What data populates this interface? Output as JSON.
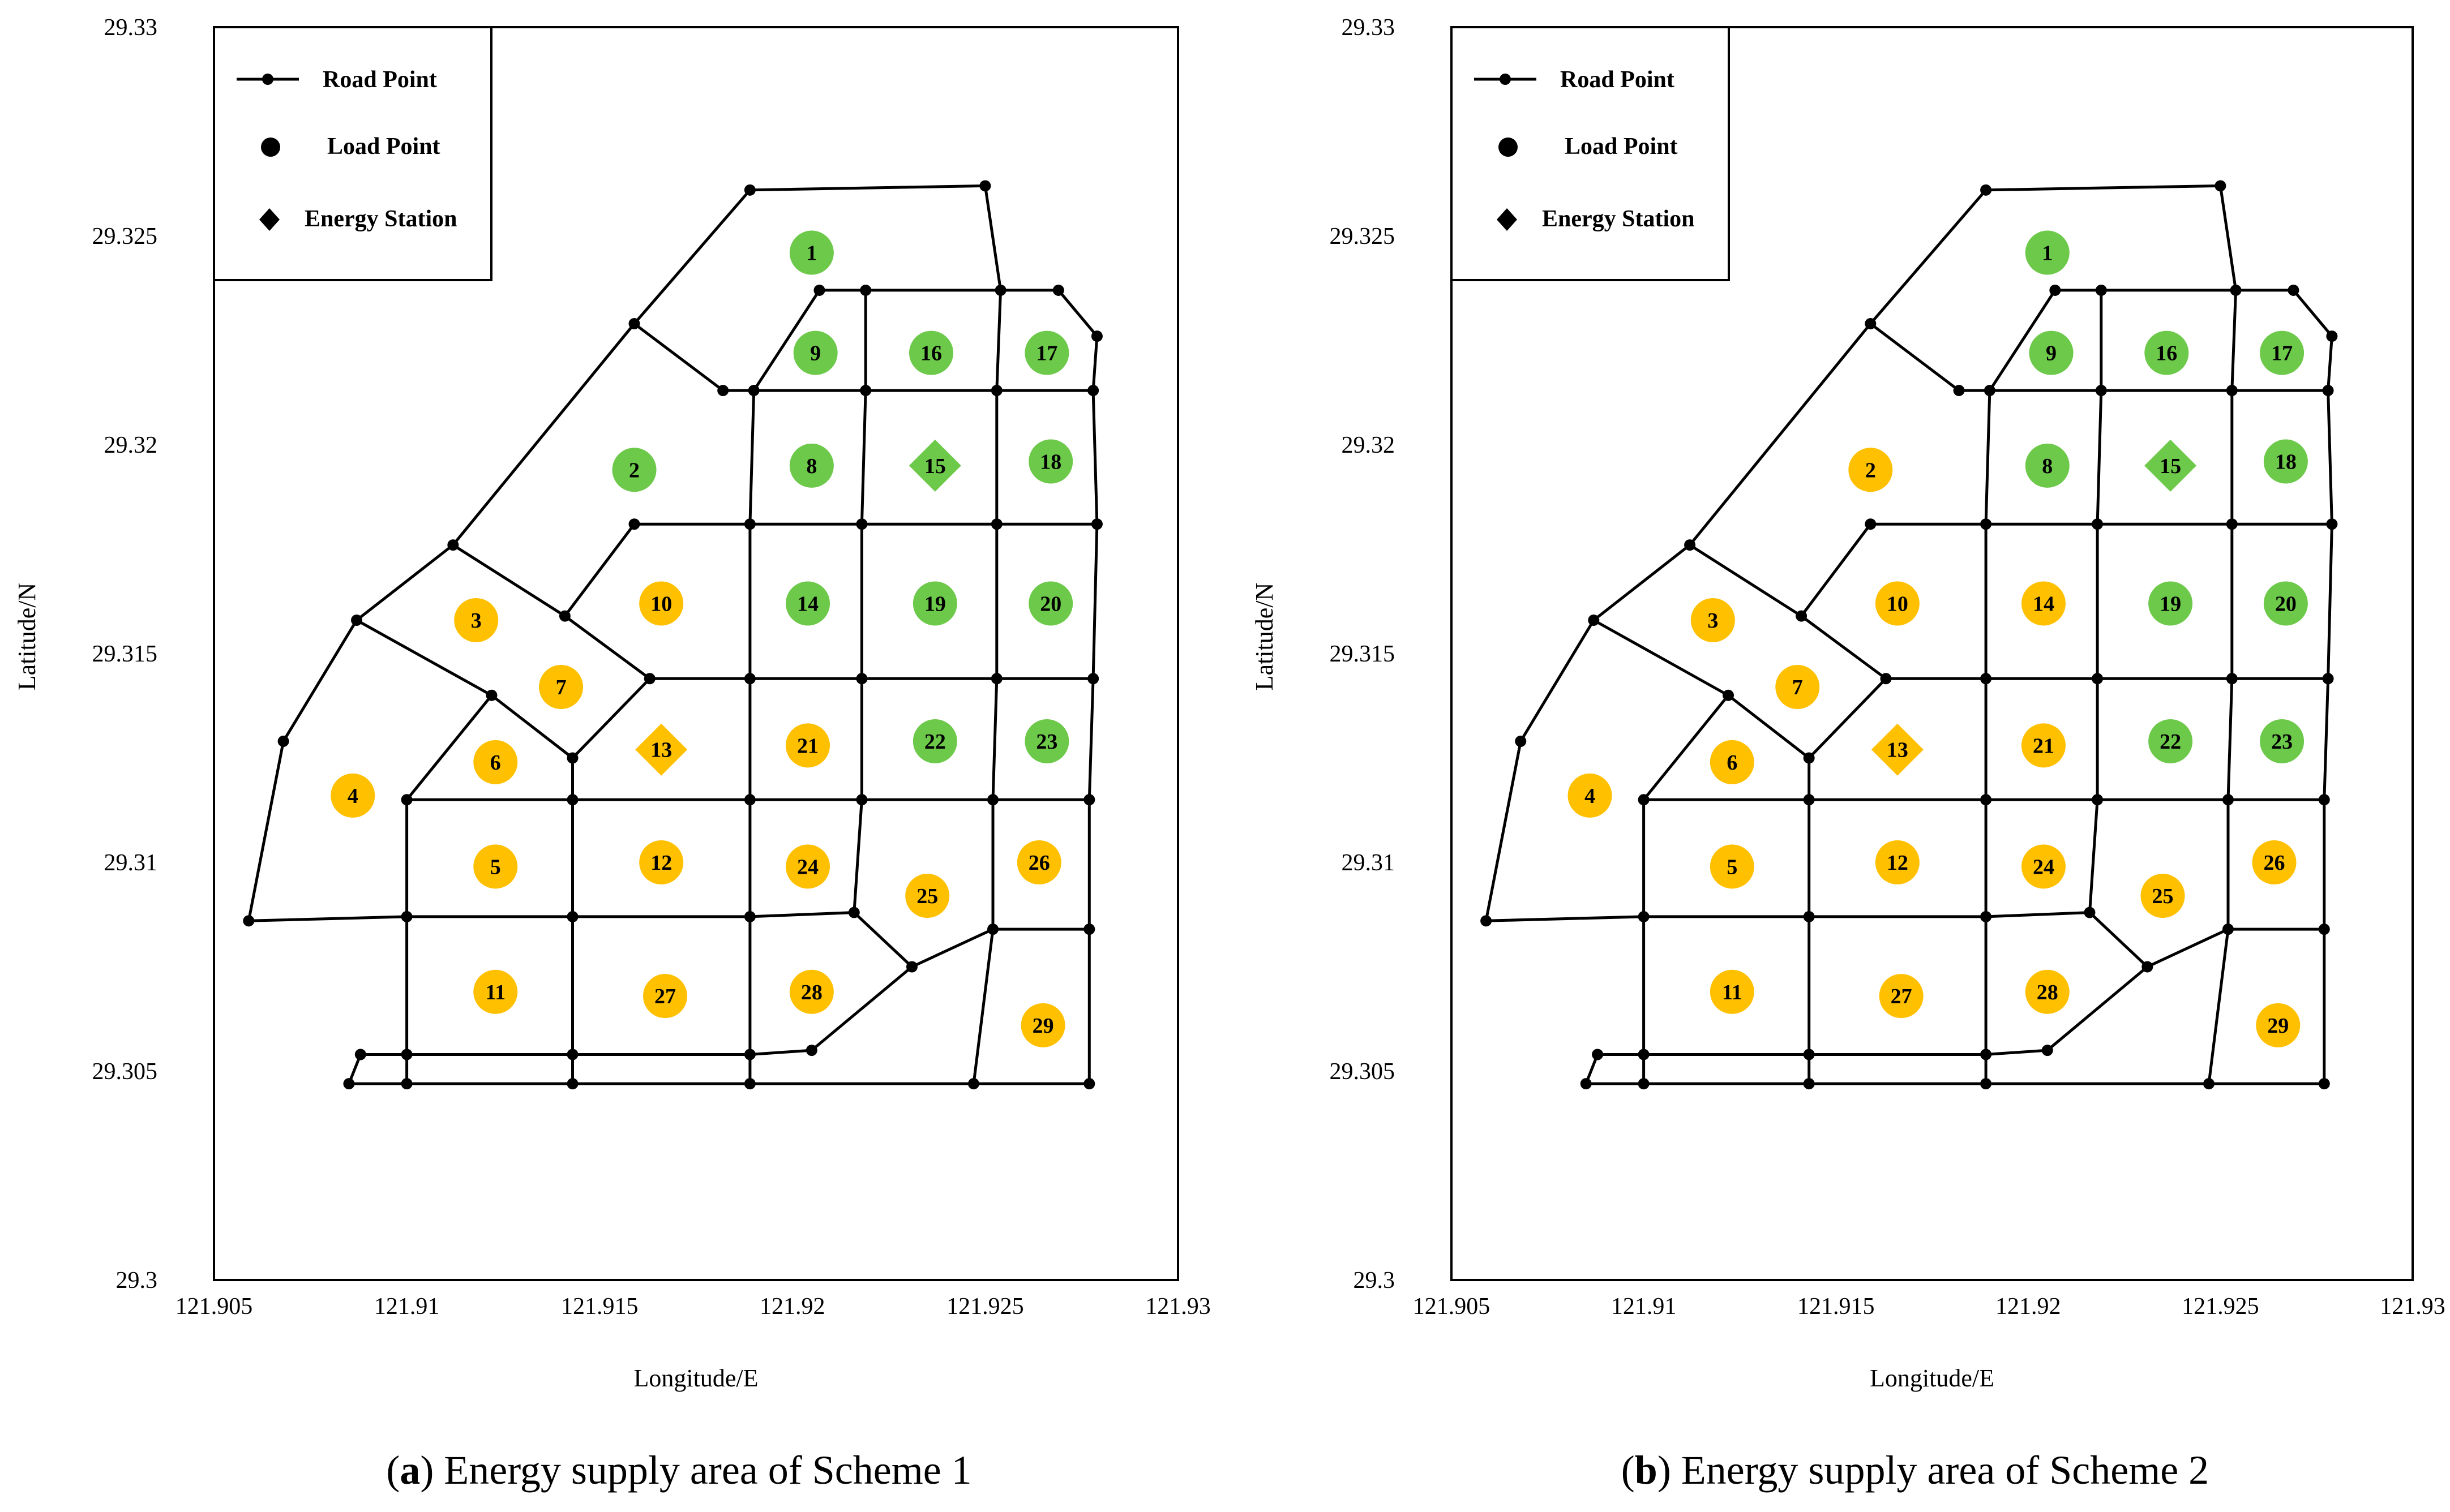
{
  "figure": {
    "colors": {
      "green": "#6DC94A",
      "orange": "#FFC000",
      "line": "#000000"
    },
    "axes": {
      "x_title": "Longitude/E",
      "y_title": "Latitude/N",
      "x_ticks": [
        "121.905",
        "121.91",
        "121.915",
        "121.92",
        "121.925",
        "121.93"
      ],
      "y_ticks": [
        "29.33",
        "29.325",
        "29.32",
        "29.315",
        "29.31",
        "29.305",
        "29.3"
      ],
      "x_range": [
        121.905,
        121.93
      ],
      "y_range": [
        29.3,
        29.33
      ]
    },
    "legend": {
      "road_point": "Road Point",
      "load_point": "Load Point",
      "energy_station": "Energy Station"
    },
    "road_points": [
      [
        121.9059,
        29.3086
      ],
      [
        121.9068,
        29.3129
      ],
      [
        121.9087,
        29.3158
      ],
      [
        121.9112,
        29.3176
      ],
      [
        121.9159,
        29.3229
      ],
      [
        121.9189,
        29.3261
      ],
      [
        121.925,
        29.3262
      ],
      [
        121.9182,
        29.3213
      ],
      [
        121.919,
        29.3213
      ],
      [
        121.9207,
        29.3237
      ],
      [
        121.9219,
        29.3237
      ],
      [
        121.9254,
        29.3237
      ],
      [
        121.9269,
        29.3237
      ],
      [
        121.9279,
        29.3226
      ],
      [
        121.9278,
        29.3213
      ],
      [
        121.9253,
        29.3213
      ],
      [
        121.9219,
        29.3213
      ],
      [
        121.9159,
        29.3181
      ],
      [
        121.9189,
        29.3181
      ],
      [
        121.9218,
        29.3181
      ],
      [
        121.9253,
        29.3181
      ],
      [
        121.9279,
        29.3181
      ],
      [
        121.9141,
        29.3159
      ],
      [
        121.9163,
        29.3144
      ],
      [
        121.9189,
        29.3144
      ],
      [
        121.9218,
        29.3144
      ],
      [
        121.9253,
        29.3144
      ],
      [
        121.9278,
        29.3144
      ],
      [
        121.9122,
        29.314
      ],
      [
        121.9143,
        29.3125
      ],
      [
        121.91,
        29.3115
      ],
      [
        121.9143,
        29.3115
      ],
      [
        121.9189,
        29.3115
      ],
      [
        121.9218,
        29.3115
      ],
      [
        121.9252,
        29.3115
      ],
      [
        121.9277,
        29.3115
      ],
      [
        121.91,
        29.3087
      ],
      [
        121.9143,
        29.3087
      ],
      [
        121.9189,
        29.3087
      ],
      [
        121.9216,
        29.3088
      ],
      [
        121.9231,
        29.3075
      ],
      [
        121.9252,
        29.3084
      ],
      [
        121.9277,
        29.3084
      ],
      [
        121.9088,
        29.3054
      ],
      [
        121.91,
        29.3054
      ],
      [
        121.9143,
        29.3054
      ],
      [
        121.9189,
        29.3054
      ],
      [
        121.9205,
        29.3055
      ],
      [
        121.9085,
        29.3047
      ],
      [
        121.91,
        29.3047
      ],
      [
        121.9143,
        29.3047
      ],
      [
        121.9189,
        29.3047
      ],
      [
        121.9247,
        29.3047
      ],
      [
        121.9277,
        29.3047
      ]
    ],
    "roads": [
      [
        [
          121.9059,
          29.3086
        ],
        [
          121.9068,
          29.3129
        ],
        [
          121.9087,
          29.3158
        ],
        [
          121.9112,
          29.3176
        ],
        [
          121.9159,
          29.3229
        ],
        [
          121.9189,
          29.3261
        ],
        [
          121.925,
          29.3262
        ],
        [
          121.9254,
          29.3237
        ],
        [
          121.9269,
          29.3237
        ],
        [
          121.9279,
          29.3226
        ],
        [
          121.9278,
          29.3213
        ],
        [
          121.9279,
          29.3181
        ],
        [
          121.9278,
          29.3144
        ],
        [
          121.9277,
          29.3115
        ],
        [
          121.9277,
          29.3084
        ],
        [
          121.9277,
          29.3047
        ],
        [
          121.9247,
          29.3047
        ],
        [
          121.9189,
          29.3047
        ],
        [
          121.9143,
          29.3047
        ],
        [
          121.91,
          29.3047
        ],
        [
          121.9085,
          29.3047
        ],
        [
          121.9088,
          29.3054
        ],
        [
          121.91,
          29.3054
        ],
        [
          121.9143,
          29.3054
        ],
        [
          121.9189,
          29.3054
        ],
        [
          121.9205,
          29.3055
        ],
        [
          121.9231,
          29.3075
        ],
        [
          121.9252,
          29.3084
        ],
        [
          121.9277,
          29.3084
        ]
      ],
      [
        [
          121.9059,
          29.3086
        ],
        [
          121.91,
          29.3087
        ],
        [
          121.9143,
          29.3087
        ],
        [
          121.9189,
          29.3087
        ],
        [
          121.9216,
          29.3088
        ],
        [
          121.9231,
          29.3075
        ]
      ],
      [
        [
          121.9159,
          29.3229
        ],
        [
          121.9182,
          29.3213
        ],
        [
          121.919,
          29.3213
        ],
        [
          121.9219,
          29.3213
        ],
        [
          121.9253,
          29.3213
        ],
        [
          121.9278,
          29.3213
        ]
      ],
      [
        [
          121.919,
          29.3213
        ],
        [
          121.9207,
          29.3237
        ],
        [
          121.9219,
          29.3237
        ],
        [
          121.9254,
          29.3237
        ]
      ],
      [
        [
          121.9087,
          29.3158
        ],
        [
          121.9122,
          29.314
        ],
        [
          121.9143,
          29.3125
        ],
        [
          121.9163,
          29.3144
        ],
        [
          121.9141,
          29.3159
        ],
        [
          121.9112,
          29.3176
        ]
      ],
      [
        [
          121.9141,
          29.3159
        ],
        [
          121.9159,
          29.3181
        ],
        [
          121.9189,
          29.3181
        ],
        [
          121.9218,
          29.3181
        ],
        [
          121.9253,
          29.3181
        ],
        [
          121.9279,
          29.3181
        ]
      ],
      [
        [
          121.9163,
          29.3144
        ],
        [
          121.9189,
          29.3144
        ],
        [
          121.9218,
          29.3144
        ],
        [
          121.9253,
          29.3144
        ],
        [
          121.9278,
          29.3144
        ]
      ],
      [
        [
          121.9122,
          29.314
        ],
        [
          121.91,
          29.3115
        ],
        [
          121.9143,
          29.3115
        ],
        [
          121.9189,
          29.3115
        ],
        [
          121.9218,
          29.3115
        ],
        [
          121.9252,
          29.3115
        ],
        [
          121.9277,
          29.3115
        ]
      ],
      [
        [
          121.91,
          29.3115
        ],
        [
          121.91,
          29.3087
        ],
        [
          121.91,
          29.3054
        ],
        [
          121.91,
          29.3047
        ]
      ],
      [
        [
          121.9143,
          29.3125
        ],
        [
          121.9143,
          29.3115
        ],
        [
          121.9143,
          29.3087
        ],
        [
          121.9143,
          29.3054
        ],
        [
          121.9143,
          29.3047
        ]
      ],
      [
        [
          121.919,
          29.3213
        ],
        [
          121.9189,
          29.3181
        ],
        [
          121.9189,
          29.3144
        ],
        [
          121.9189,
          29.3115
        ],
        [
          121.9189,
          29.3087
        ],
        [
          121.9189,
          29.3054
        ],
        [
          121.9189,
          29.3047
        ]
      ],
      [
        [
          121.9219,
          29.3237
        ],
        [
          121.9219,
          29.3213
        ],
        [
          121.9218,
          29.3181
        ],
        [
          121.9218,
          29.3144
        ],
        [
          121.9218,
          29.3115
        ],
        [
          121.9216,
          29.3088
        ]
      ],
      [
        [
          121.9254,
          29.3237
        ],
        [
          121.9253,
          29.3213
        ],
        [
          121.9253,
          29.3181
        ],
        [
          121.9253,
          29.3144
        ],
        [
          121.9252,
          29.3115
        ],
        [
          121.9252,
          29.3084
        ],
        [
          121.9247,
          29.3047
        ]
      ]
    ],
    "nodes": [
      {
        "label": "1",
        "x": 121.9205,
        "y": 29.3246,
        "shape": "circle"
      },
      {
        "label": "2",
        "x": 121.9159,
        "y": 29.3194,
        "shape": "circle"
      },
      {
        "label": "3",
        "x": 121.9118,
        "y": 29.3158,
        "shape": "circle"
      },
      {
        "label": "4",
        "x": 121.9086,
        "y": 29.3116,
        "shape": "circle"
      },
      {
        "label": "5",
        "x": 121.9123,
        "y": 29.3099,
        "shape": "circle"
      },
      {
        "label": "6",
        "x": 121.9123,
        "y": 29.3124,
        "shape": "circle"
      },
      {
        "label": "7",
        "x": 121.914,
        "y": 29.3142,
        "shape": "circle"
      },
      {
        "label": "8",
        "x": 121.9205,
        "y": 29.3195,
        "shape": "circle"
      },
      {
        "label": "9",
        "x": 121.9206,
        "y": 29.3222,
        "shape": "circle"
      },
      {
        "label": "10",
        "x": 121.9166,
        "y": 29.3162,
        "shape": "circle"
      },
      {
        "label": "11",
        "x": 121.9123,
        "y": 29.3069,
        "shape": "circle"
      },
      {
        "label": "12",
        "x": 121.9166,
        "y": 29.31,
        "shape": "circle"
      },
      {
        "label": "13",
        "x": 121.9166,
        "y": 29.3127,
        "shape": "diamond"
      },
      {
        "label": "14",
        "x": 121.9204,
        "y": 29.3162,
        "shape": "circle"
      },
      {
        "label": "15",
        "x": 121.9237,
        "y": 29.3195,
        "shape": "diamond"
      },
      {
        "label": "16",
        "x": 121.9236,
        "y": 29.3222,
        "shape": "circle"
      },
      {
        "label": "17",
        "x": 121.9266,
        "y": 29.3222,
        "shape": "circle"
      },
      {
        "label": "18",
        "x": 121.9267,
        "y": 29.3196,
        "shape": "circle"
      },
      {
        "label": "19",
        "x": 121.9237,
        "y": 29.3162,
        "shape": "circle"
      },
      {
        "label": "20",
        "x": 121.9267,
        "y": 29.3162,
        "shape": "circle"
      },
      {
        "label": "21",
        "x": 121.9204,
        "y": 29.3128,
        "shape": "circle"
      },
      {
        "label": "22",
        "x": 121.9237,
        "y": 29.3129,
        "shape": "circle"
      },
      {
        "label": "23",
        "x": 121.9266,
        "y": 29.3129,
        "shape": "circle"
      },
      {
        "label": "24",
        "x": 121.9204,
        "y": 29.3099,
        "shape": "circle"
      },
      {
        "label": "25",
        "x": 121.9235,
        "y": 29.3092,
        "shape": "circle"
      },
      {
        "label": "26",
        "x": 121.9264,
        "y": 29.31,
        "shape": "circle"
      },
      {
        "label": "27",
        "x": 121.9167,
        "y": 29.3068,
        "shape": "circle"
      },
      {
        "label": "28",
        "x": 121.9205,
        "y": 29.3069,
        "shape": "circle"
      },
      {
        "label": "29",
        "x": 121.9265,
        "y": 29.3061,
        "shape": "circle"
      }
    ],
    "panels": [
      {
        "caption_letter": "a",
        "caption_text": ") Energy supply area of Scheme 1",
        "green_nodes": [
          "1",
          "2",
          "8",
          "9",
          "14",
          "15",
          "16",
          "17",
          "18",
          "19",
          "20",
          "22",
          "23"
        ]
      },
      {
        "caption_letter": "b",
        "caption_text": ") Energy supply area of Scheme 2",
        "green_nodes": [
          "1",
          "8",
          "9",
          "15",
          "16",
          "17",
          "18",
          "19",
          "20",
          "22",
          "23"
        ]
      }
    ]
  }
}
